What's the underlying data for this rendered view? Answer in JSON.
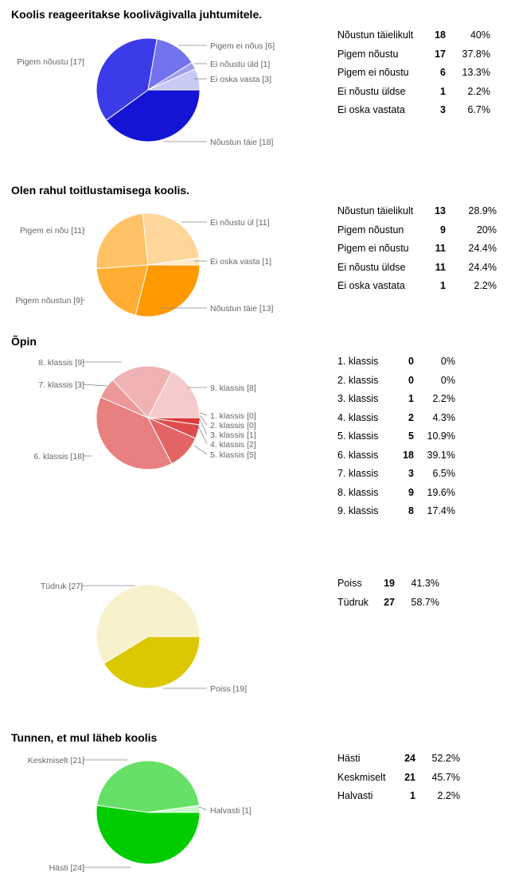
{
  "chart_data": [
    {
      "type": "pie",
      "title": "Koolis reageeritakse koolivägivalla juhtumitele.",
      "slices": [
        {
          "label": "Nõustun täielikult",
          "count": 18,
          "percent": "40%",
          "pie_label": "Nõustun täie [18]",
          "color": "#1414d4"
        },
        {
          "label": "Pigem nõustu",
          "count": 17,
          "percent": "37.8%",
          "pie_label": "Pigem nõustu [17]",
          "color": "#3b3be8"
        },
        {
          "label": "Pigem ei nõustu",
          "count": 6,
          "percent": "13.3%",
          "pie_label": "Pigem ei nõus [6]",
          "color": "#7373ee"
        },
        {
          "label": "Ei nõustu üldse",
          "count": 1,
          "percent": "2.2%",
          "pie_label": "Ei nõustu üld [1]",
          "color": "#9d9df2"
        },
        {
          "label": "Ei oska vastata",
          "count": 3,
          "percent": "6.7%",
          "pie_label": "Ei oska vasta [3]",
          "color": "#c9c9f6"
        }
      ]
    },
    {
      "type": "pie",
      "title": "Olen rahul toitlustamisega koolis.",
      "slices": [
        {
          "label": "Nõustun täielikult",
          "count": 13,
          "percent": "28.9%",
          "pie_label": "Nõustun täie [13]",
          "color": "#ff9900"
        },
        {
          "label": "Pigem nõustun",
          "count": 9,
          "percent": "20%",
          "pie_label": "Pigem nõustun [9]",
          "color": "#ffad33"
        },
        {
          "label": "Pigem ei nõustu",
          "count": 11,
          "percent": "24.4%",
          "pie_label": "Pigem ei nõu [11]",
          "color": "#ffc266"
        },
        {
          "label": "Ei nõustu üldse",
          "count": 11,
          "percent": "24.4%",
          "pie_label": "Ei nõustu ül [11]",
          "color": "#ffd699"
        },
        {
          "label": "Ei oska vastata",
          "count": 1,
          "percent": "2.2%",
          "pie_label": "Ei oska vasta [1]",
          "color": "#ffebcc"
        }
      ]
    },
    {
      "type": "pie",
      "title": "Õpin",
      "slices": [
        {
          "label": "1. klassis",
          "count": 0,
          "percent": "0%",
          "pie_label": "1. klassis [0]",
          "color": "#cc0000"
        },
        {
          "label": "2. klassis",
          "count": 0,
          "percent": "0%",
          "pie_label": "2. klassis [0]",
          "color": "#d42020"
        },
        {
          "label": "3. klassis",
          "count": 1,
          "percent": "2.2%",
          "pie_label": "3. klassis [1]",
          "color": "#da3a3a"
        },
        {
          "label": "4. klassis",
          "count": 2,
          "percent": "4.3%",
          "pie_label": "4. klassis [2]",
          "color": "#de4d4d"
        },
        {
          "label": "5. klassis",
          "count": 5,
          "percent": "10.9%",
          "pie_label": "5. klassis [5]",
          "color": "#e26464"
        },
        {
          "label": "6. klassis",
          "count": 18,
          "percent": "39.1%",
          "pie_label": "6. klassis [18]",
          "color": "#e88080"
        },
        {
          "label": "7. klassis",
          "count": 3,
          "percent": "6.5%",
          "pie_label": "7. klassis [3]",
          "color": "#ec9898"
        },
        {
          "label": "8. klassis",
          "count": 9,
          "percent": "19.6%",
          "pie_label": "8. klassis [9]",
          "color": "#f0b2b2"
        },
        {
          "label": "9. klassis",
          "count": 8,
          "percent": "17.4%",
          "pie_label": "9. klassis [8]",
          "color": "#f4caca"
        }
      ]
    },
    {
      "type": "pie",
      "title": "",
      "slices": [
        {
          "label": "Poiss",
          "count": 19,
          "percent": "41.3%",
          "pie_label": "Poiss [19]",
          "color": "#dcc800"
        },
        {
          "label": "Tüdruk",
          "count": 27,
          "percent": "58.7%",
          "pie_label": "Tüdruk [27]",
          "color": "#f7f2cc"
        }
      ]
    },
    {
      "type": "pie",
      "title": "Tunnen, et mul läheb koolis",
      "slices": [
        {
          "label": "Hästi",
          "count": 24,
          "percent": "52.2%",
          "pie_label": "Hästi [24]",
          "color": "#00cc00"
        },
        {
          "label": "Keskmiselt",
          "count": 21,
          "percent": "45.7%",
          "pie_label": "Keskmiselt [21]",
          "color": "#66e066"
        },
        {
          "label": "Halvasti",
          "count": 1,
          "percent": "2.2%",
          "pie_label": "Halvasti [1]",
          "color": "#ccf5cc"
        }
      ]
    }
  ]
}
